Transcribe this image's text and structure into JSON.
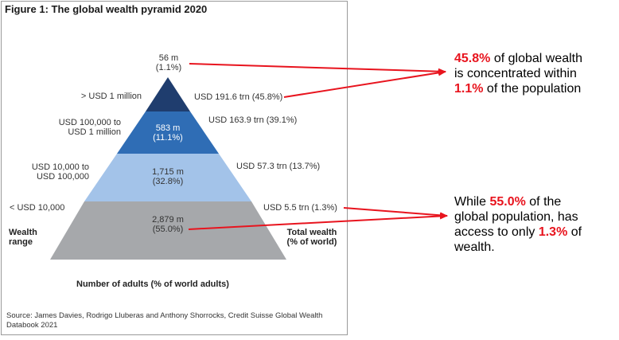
{
  "figure": {
    "title": "Figure 1: The global wealth pyramid 2020",
    "source": "Source: James Davies, Rodrigo Lluberas and Anthony Shorrocks, Credit Suisse Global Wealth Databook 2021",
    "x_axis_label": "Number of adults (% of world adults)",
    "left_axis_label": [
      "Wealth",
      "range"
    ],
    "right_axis_label": [
      "Total wealth",
      "(% of world)"
    ]
  },
  "tiers": [
    {
      "range_label": [
        "> USD 1 million"
      ],
      "adults_label": [
        "56 m",
        "(1.1%)"
      ],
      "wealth_label": "USD 191.6 trn (45.8%)",
      "color": "#1f3d6e"
    },
    {
      "range_label": [
        "USD 100,000 to",
        "USD 1 million"
      ],
      "adults_label": [
        "583 m",
        "(11.1%)"
      ],
      "wealth_label": "USD 163.9 trn (39.1%)",
      "color": "#2f6db5"
    },
    {
      "range_label": [
        "USD 10,000 to",
        "USD 100,000"
      ],
      "adults_label": [
        "1,715 m",
        "(32.8%)"
      ],
      "wealth_label": "USD 57.3 trn (13.7%)",
      "color": "#a3c3e9"
    },
    {
      "range_label": [
        "< USD 10,000"
      ],
      "adults_label": [
        "2,879 m",
        "(55.0%)"
      ],
      "wealth_label": "USD 5.5 trn (1.3%)",
      "color": "#a6a8ab"
    }
  ],
  "callouts": {
    "top": {
      "pct_wealth": "45.8%",
      "text_a": " of global wealth",
      "text_b": "is concentrated within",
      "pct_pop": "1.1%",
      "text_c": " of the population"
    },
    "bottom": {
      "text_a": "While ",
      "pct_pop": "55.0%",
      "text_b": " of the",
      "text_c": "global population, has",
      "text_d": "access to only ",
      "pct_wealth": "1.3%",
      "text_e": " of",
      "text_f": "wealth."
    },
    "arrow_color": "#e8141e"
  }
}
